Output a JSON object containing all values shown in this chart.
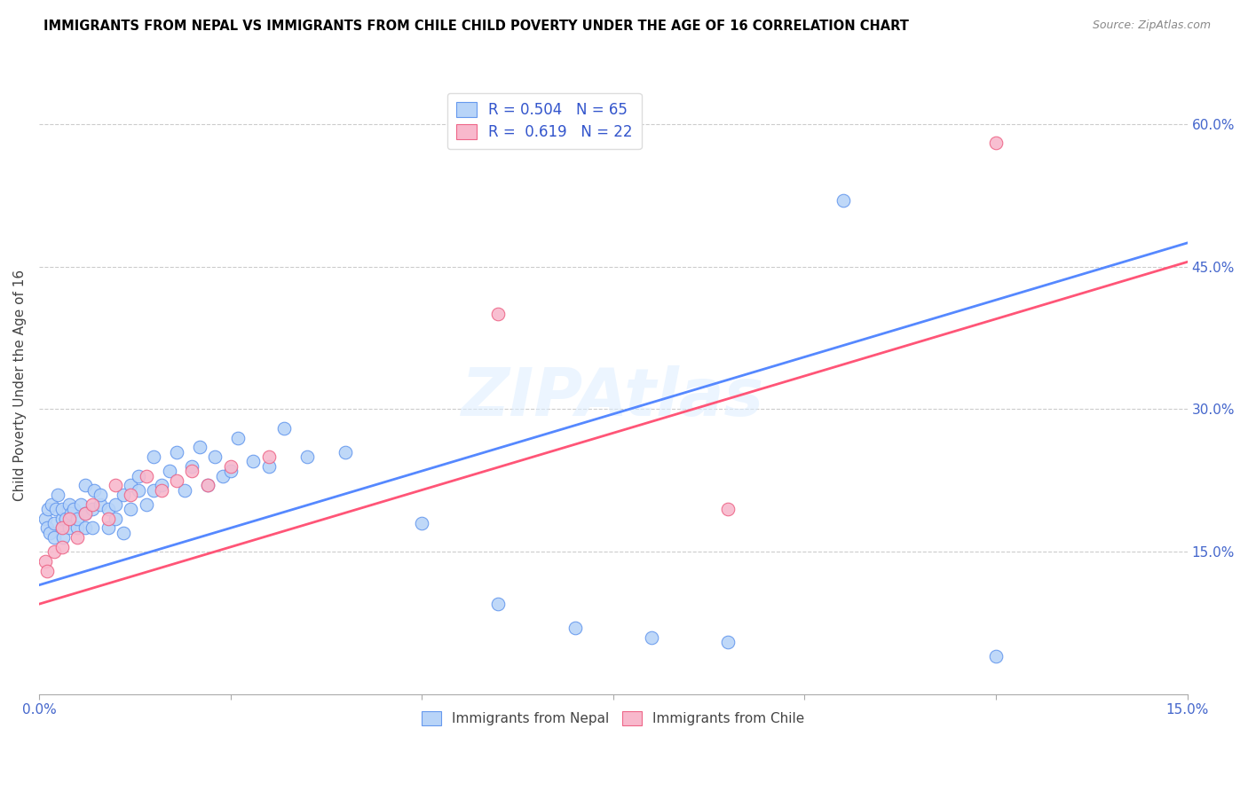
{
  "title": "IMMIGRANTS FROM NEPAL VS IMMIGRANTS FROM CHILE CHILD POVERTY UNDER THE AGE OF 16 CORRELATION CHART",
  "source": "Source: ZipAtlas.com",
  "ylabel": "Child Poverty Under the Age of 16",
  "legend_bottom": [
    "Immigrants from Nepal",
    "Immigrants from Chile"
  ],
  "nepal_R": "0.504",
  "nepal_N": "65",
  "chile_R": "0.619",
  "chile_N": "22",
  "xlim": [
    0.0,
    0.15
  ],
  "ylim": [
    0.0,
    0.65
  ],
  "xtick_positions": [
    0.0,
    0.025,
    0.05,
    0.075,
    0.1,
    0.125,
    0.15
  ],
  "xtick_labels": [
    "0.0%",
    "",
    "",
    "",
    "",
    "",
    "15.0%"
  ],
  "yticks_right": [
    0.15,
    0.3,
    0.45,
    0.6
  ],
  "ytick_labels_right": [
    "15.0%",
    "30.0%",
    "45.0%",
    "60.0%"
  ],
  "color_nepal_fill": "#b8d4f8",
  "color_nepal_edge": "#6699ee",
  "color_chile_fill": "#f8b8cc",
  "color_chile_edge": "#ee6688",
  "color_nepal_line": "#5588ff",
  "color_chile_line": "#ff5577",
  "watermark": "ZIPAtlas",
  "nepal_line_x0": 0.0,
  "nepal_line_y0": 0.115,
  "nepal_line_x1": 0.15,
  "nepal_line_y1": 0.475,
  "chile_line_x0": 0.0,
  "chile_line_y0": 0.095,
  "chile_line_x1": 0.15,
  "chile_line_y1": 0.455,
  "nepal_x": [
    0.0008,
    0.001,
    0.0012,
    0.0014,
    0.0016,
    0.002,
    0.002,
    0.0022,
    0.0025,
    0.003,
    0.003,
    0.003,
    0.0032,
    0.0035,
    0.004,
    0.004,
    0.0042,
    0.0045,
    0.005,
    0.005,
    0.0055,
    0.006,
    0.006,
    0.006,
    0.007,
    0.007,
    0.0072,
    0.008,
    0.008,
    0.009,
    0.009,
    0.01,
    0.01,
    0.011,
    0.011,
    0.012,
    0.012,
    0.013,
    0.013,
    0.014,
    0.015,
    0.015,
    0.016,
    0.017,
    0.018,
    0.019,
    0.02,
    0.021,
    0.022,
    0.023,
    0.024,
    0.025,
    0.026,
    0.028,
    0.03,
    0.032,
    0.035,
    0.04,
    0.05,
    0.06,
    0.07,
    0.08,
    0.09,
    0.105,
    0.125
  ],
  "nepal_y": [
    0.185,
    0.175,
    0.195,
    0.17,
    0.2,
    0.18,
    0.165,
    0.195,
    0.21,
    0.175,
    0.185,
    0.195,
    0.165,
    0.185,
    0.175,
    0.2,
    0.19,
    0.195,
    0.175,
    0.185,
    0.2,
    0.175,
    0.19,
    0.22,
    0.175,
    0.195,
    0.215,
    0.2,
    0.21,
    0.195,
    0.175,
    0.2,
    0.185,
    0.21,
    0.17,
    0.195,
    0.22,
    0.215,
    0.23,
    0.2,
    0.215,
    0.25,
    0.22,
    0.235,
    0.255,
    0.215,
    0.24,
    0.26,
    0.22,
    0.25,
    0.23,
    0.235,
    0.27,
    0.245,
    0.24,
    0.28,
    0.25,
    0.255,
    0.18,
    0.095,
    0.07,
    0.06,
    0.055,
    0.52,
    0.04
  ],
  "chile_x": [
    0.0008,
    0.001,
    0.002,
    0.003,
    0.003,
    0.004,
    0.005,
    0.006,
    0.007,
    0.009,
    0.01,
    0.012,
    0.014,
    0.016,
    0.018,
    0.02,
    0.022,
    0.025,
    0.03,
    0.06,
    0.09,
    0.125
  ],
  "chile_y": [
    0.14,
    0.13,
    0.15,
    0.155,
    0.175,
    0.185,
    0.165,
    0.19,
    0.2,
    0.185,
    0.22,
    0.21,
    0.23,
    0.215,
    0.225,
    0.235,
    0.22,
    0.24,
    0.25,
    0.4,
    0.195,
    0.58
  ]
}
